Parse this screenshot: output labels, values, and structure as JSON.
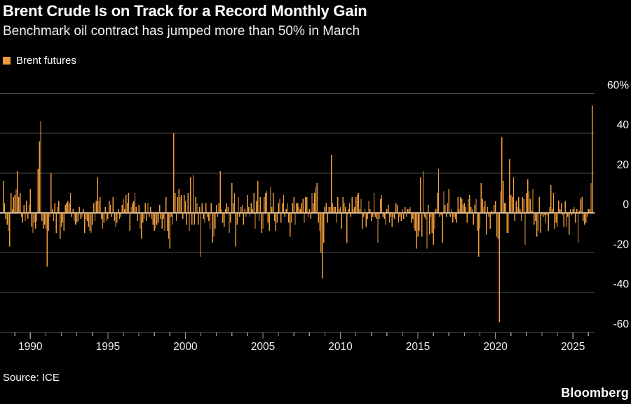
{
  "header": {
    "title": "Brent Crude Is on Track for a Record Monthly Gain",
    "subtitle": "Benchmark oil contract has jumped more than 50% in March"
  },
  "legend": {
    "label": "Brent futures",
    "color": "#EE9C3B"
  },
  "source": {
    "label": "Source: ICE"
  },
  "brand": {
    "label": "Bloomberg"
  },
  "chart_data": {
    "type": "bar",
    "title": "Brent Crude Is on Track for a Record Monthly Gain",
    "subtitle": "Benchmark oil contract has jumped more than 50% in March",
    "series_name": "Brent futures",
    "unit": "%",
    "bar_color": "#EE9C3B",
    "grid": "horizontal",
    "legend_position": "top-left",
    "ylim": [
      -60,
      60
    ],
    "y_axis": {
      "ticks": [
        {
          "value": 60,
          "label": "60%"
        },
        {
          "value": 40,
          "label": "40"
        },
        {
          "value": 20,
          "label": "20"
        },
        {
          "value": 0,
          "label": "0"
        },
        {
          "value": -20,
          "label": "-20"
        },
        {
          "value": -40,
          "label": "-40"
        },
        {
          "value": -60,
          "label": "-60"
        }
      ]
    },
    "x_axis": {
      "start_year": 1989,
      "end_year": 2026,
      "major_labels": [
        {
          "year": 1990,
          "label": "1990"
        },
        {
          "year": 1995,
          "label": "1995"
        },
        {
          "year": 2000,
          "label": "2000"
        },
        {
          "year": 2005,
          "label": "2005"
        },
        {
          "year": 2010,
          "label": "2010"
        },
        {
          "year": 2015,
          "label": "2015"
        },
        {
          "year": 2020,
          "label": "2020"
        },
        {
          "year": 2025,
          "label": "2025"
        }
      ]
    },
    "start_month": "1988-03",
    "end_month": "2026-03",
    "values_description": "Monthly percent change in Brent futures, Mar 1988 - Mar 2026",
    "values": [
      16,
      5,
      -3,
      -6,
      -9,
      -17,
      10,
      2,
      8,
      9,
      12,
      21,
      8,
      10,
      -2,
      -5,
      4,
      -4,
      6,
      -3,
      4,
      12,
      -7,
      -10,
      -5,
      -8,
      -4,
      22,
      36,
      46,
      -4,
      -8,
      -6,
      -8,
      -27,
      -9,
      -2,
      20,
      2,
      -4,
      5,
      -10,
      3,
      6,
      -13,
      -7,
      -5,
      -9,
      4,
      5,
      6,
      5,
      10,
      -2,
      2,
      -4,
      -6,
      -5,
      -4,
      3,
      -3,
      -2,
      2,
      -10,
      -3,
      -4,
      -7,
      -9,
      -10,
      -6,
      5,
      -4,
      6,
      18,
      6,
      8,
      -3,
      -8,
      -5,
      3,
      -4,
      -3,
      6,
      4,
      -2,
      8,
      -4,
      -7,
      -5,
      2,
      -3,
      -2,
      4,
      7,
      2,
      9,
      5,
      10,
      -9,
      3,
      5,
      6,
      10,
      3,
      -4,
      4,
      -8,
      -13,
      -5,
      -3,
      5,
      -4,
      5,
      -2,
      3,
      -3,
      -6,
      -9,
      -8,
      -6,
      -5,
      4,
      -3,
      -8,
      -3,
      -9,
      8,
      -9,
      -13,
      -18,
      -2,
      -6,
      40,
      10,
      -4,
      8,
      12,
      8,
      9,
      -3,
      9,
      6,
      -6,
      10,
      -9,
      18,
      -6,
      19,
      -6,
      8,
      5,
      -6,
      3,
      -22,
      5,
      -3,
      -5,
      5,
      -2,
      -4,
      -8,
      5,
      -15,
      -12,
      -8,
      4,
      -2,
      5,
      21,
      2,
      -5,
      -7,
      2,
      5,
      3,
      -10,
      -5,
      15,
      5,
      10,
      -17,
      -6,
      8,
      -2,
      3,
      4,
      -6,
      2,
      -2,
      9,
      3,
      -2,
      5,
      2,
      10,
      -8,
      6,
      16,
      -4,
      8,
      -10,
      -8,
      8,
      10,
      11,
      -5,
      -9,
      13,
      3,
      10,
      -4,
      -9,
      -5,
      5,
      7,
      -5,
      5,
      9,
      -2,
      2,
      5,
      -5,
      -12,
      -5,
      5,
      8,
      -6,
      5,
      5,
      3,
      2,
      5,
      7,
      -5,
      8,
      8,
      -2,
      2,
      -3,
      10,
      5,
      10,
      13,
      15,
      -5,
      -9,
      -20,
      -33,
      -15,
      3,
      5,
      -5,
      3,
      3,
      29,
      5,
      3,
      3,
      -5,
      8,
      2,
      3,
      -8,
      8,
      5,
      3,
      -15,
      2,
      5,
      -2,
      8,
      2,
      3,
      8,
      9,
      10,
      2,
      7,
      -8,
      -2,
      2,
      -7,
      -3,
      6,
      2,
      -4,
      -2,
      10,
      -2,
      -3,
      -15,
      -3,
      7,
      9,
      -2,
      -3,
      -6,
      2,
      4,
      -5,
      -2,
      -7,
      -2,
      -3,
      5,
      4,
      -5,
      -2,
      -4,
      2,
      -3,
      3,
      -2,
      2,
      2,
      3,
      -5,
      -3,
      -8,
      -9,
      -18,
      -12,
      -9,
      18,
      -12,
      21,
      -2,
      -3,
      -18,
      4,
      -11,
      -2,
      -10,
      -16,
      -8,
      2,
      10,
      22,
      -2,
      -1,
      -15,
      11,
      4,
      -2,
      5,
      12,
      -2,
      2,
      -5,
      -2,
      -3,
      -5,
      8,
      2,
      8,
      7,
      4,
      5,
      3,
      -5,
      7,
      9,
      3,
      2,
      -6,
      4,
      7,
      -9,
      -22,
      -8,
      15,
      7,
      3,
      6,
      -11,
      3,
      -2,
      -8,
      1,
      -1,
      4,
      6,
      -12,
      -13,
      -55,
      11,
      38,
      16,
      5,
      5,
      -10,
      -10,
      27,
      9,
      8,
      18,
      -4,
      6,
      3,
      8,
      2,
      -4,
      8,
      7,
      -16,
      10,
      17,
      11,
      7,
      1,
      12,
      -6,
      -4,
      -12,
      -9,
      8,
      -10,
      -1,
      -2,
      -1,
      -5,
      -1,
      -9,
      3,
      14,
      2,
      10,
      -8,
      -5,
      -7,
      6,
      2,
      5,
      -1,
      -7,
      6,
      -7,
      -2,
      -11,
      2,
      -1,
      2,
      3,
      -5,
      2,
      -15,
      1,
      7,
      8,
      -4,
      -6,
      -5,
      -2,
      2,
      2,
      15,
      54
    ]
  }
}
